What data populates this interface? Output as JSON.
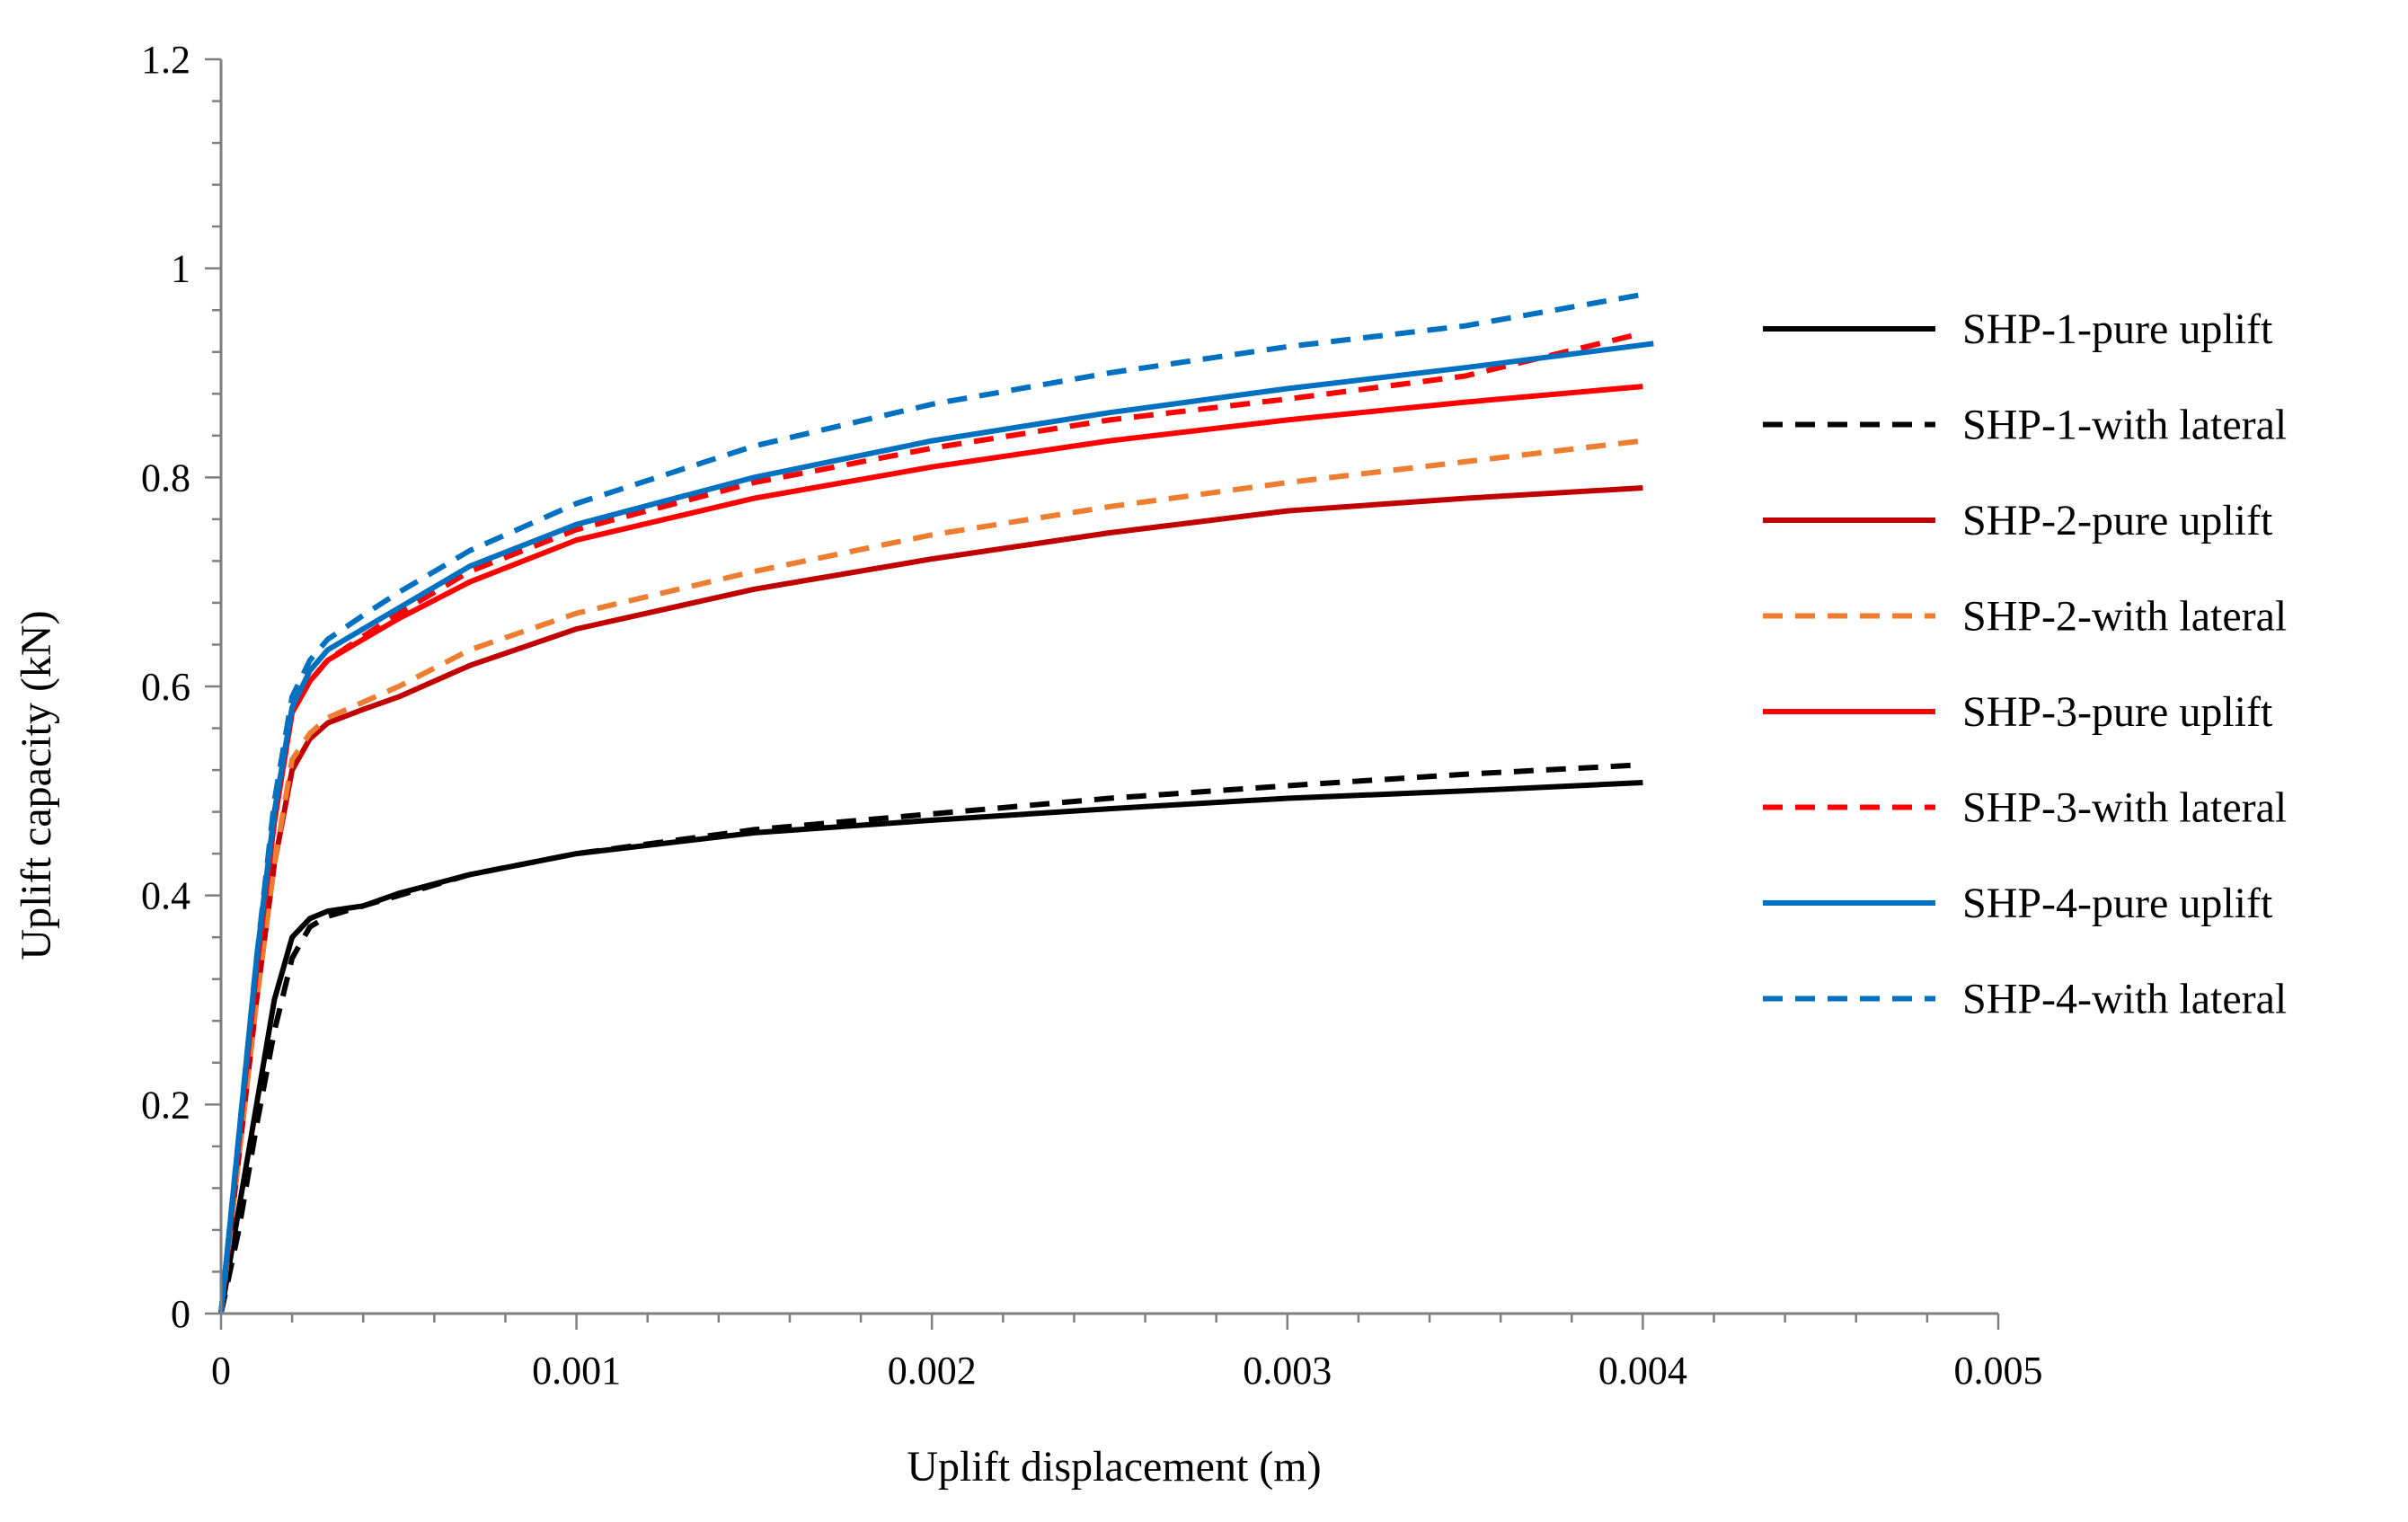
{
  "chart_data": {
    "type": "line",
    "title": "",
    "xlabel": "Uplift displacement (m)",
    "ylabel": "Uplift capacity (kN)",
    "xlim": [
      0,
      0.005
    ],
    "ylim": [
      0,
      1.2
    ],
    "xticks": [
      0,
      0.001,
      0.002,
      0.003,
      0.004,
      0.005
    ],
    "xtick_labels": [
      "0",
      "0.001",
      "0.002",
      "0.003",
      "0.004",
      "0.005"
    ],
    "yticks": [
      0,
      0.2,
      0.4,
      0.6,
      0.8,
      1.0,
      1.2
    ],
    "ytick_labels": [
      "0",
      "0.2",
      "0.4",
      "0.6",
      "0.8",
      "1",
      "1.2"
    ],
    "grid": false,
    "legend_position": "right",
    "series": [
      {
        "name": "SHP-1-pure uplift",
        "color": "#000000",
        "dash": "solid",
        "x": [
          0,
          5e-05,
          0.0001,
          0.00015,
          0.0002,
          0.00025,
          0.0003,
          0.0004,
          0.0005,
          0.0007,
          0.001,
          0.0015,
          0.002,
          0.0025,
          0.003,
          0.0035,
          0.004
        ],
        "y": [
          0,
          0.1,
          0.2,
          0.3,
          0.36,
          0.378,
          0.385,
          0.39,
          0.402,
          0.42,
          0.44,
          0.46,
          0.472,
          0.483,
          0.493,
          0.5,
          0.508
        ]
      },
      {
        "name": "SHP-1-with lateral",
        "color": "#000000",
        "dash": "dashed",
        "x": [
          0,
          5e-05,
          0.0001,
          0.00015,
          0.0002,
          0.00025,
          0.0003,
          0.0004,
          0.0005,
          0.0007,
          0.001,
          0.0015,
          0.002,
          0.0025,
          0.003,
          0.0035,
          0.004
        ],
        "y": [
          0,
          0.08,
          0.18,
          0.27,
          0.34,
          0.37,
          0.38,
          0.39,
          0.4,
          0.42,
          0.44,
          0.463,
          0.478,
          0.493,
          0.505,
          0.516,
          0.525
        ]
      },
      {
        "name": "SHP-2-pure uplift",
        "color": "#c00000",
        "dash": "solid",
        "x": [
          0,
          0.0001,
          0.00015,
          0.0002,
          0.00025,
          0.0003,
          0.0004,
          0.0005,
          0.0007,
          0.001,
          0.0015,
          0.002,
          0.0025,
          0.003,
          0.0035,
          0.004
        ],
        "y": [
          0,
          0.3,
          0.43,
          0.52,
          0.55,
          0.565,
          0.578,
          0.59,
          0.62,
          0.655,
          0.693,
          0.722,
          0.747,
          0.768,
          0.78,
          0.79
        ]
      },
      {
        "name": "SHP-2-with lateral",
        "color": "#ed7d31",
        "dash": "dashed",
        "x": [
          0,
          0.0001,
          0.00015,
          0.0002,
          0.00025,
          0.0003,
          0.0004,
          0.0005,
          0.0007,
          0.001,
          0.0015,
          0.002,
          0.0025,
          0.003,
          0.0035,
          0.004
        ],
        "y": [
          0,
          0.3,
          0.43,
          0.53,
          0.555,
          0.57,
          0.585,
          0.6,
          0.635,
          0.67,
          0.71,
          0.745,
          0.772,
          0.795,
          0.815,
          0.835
        ]
      },
      {
        "name": "SHP-3-pure uplift",
        "color": "#ff0000",
        "dash": "solid",
        "x": [
          0,
          0.0001,
          0.00015,
          0.0002,
          0.00025,
          0.0003,
          0.0004,
          0.0005,
          0.0007,
          0.001,
          0.0015,
          0.002,
          0.0025,
          0.003,
          0.0035,
          0.004
        ],
        "y": [
          0,
          0.33,
          0.47,
          0.575,
          0.605,
          0.625,
          0.645,
          0.665,
          0.7,
          0.74,
          0.78,
          0.81,
          0.835,
          0.855,
          0.872,
          0.887
        ]
      },
      {
        "name": "SHP-3-with lateral",
        "color": "#ff0000",
        "dash": "dashed",
        "x": [
          0,
          0.0001,
          0.00015,
          0.0002,
          0.00025,
          0.0003,
          0.0004,
          0.0005,
          0.0007,
          0.001,
          0.0015,
          0.002,
          0.0025,
          0.003,
          0.0035,
          0.004
        ],
        "y": [
          0,
          0.33,
          0.47,
          0.575,
          0.605,
          0.625,
          0.648,
          0.67,
          0.71,
          0.75,
          0.795,
          0.828,
          0.855,
          0.875,
          0.897,
          0.938
        ]
      },
      {
        "name": "SHP-4-pure uplift",
        "color": "#0070c0",
        "dash": "solid",
        "x": [
          0,
          0.0001,
          0.00015,
          0.0002,
          0.00025,
          0.0003,
          0.0004,
          0.0005,
          0.0007,
          0.001,
          0.0015,
          0.002,
          0.0025,
          0.003,
          0.0035,
          0.00403
        ],
        "y": [
          0,
          0.34,
          0.48,
          0.58,
          0.615,
          0.635,
          0.655,
          0.675,
          0.715,
          0.755,
          0.8,
          0.835,
          0.862,
          0.885,
          0.905,
          0.928
        ]
      },
      {
        "name": "SHP-4-with lateral",
        "color": "#0070c0",
        "dash": "dashed",
        "x": [
          0,
          0.0001,
          0.00015,
          0.0002,
          0.00025,
          0.0003,
          0.0004,
          0.0005,
          0.0007,
          0.001,
          0.0015,
          0.002,
          0.0025,
          0.003,
          0.0035,
          0.004
        ],
        "y": [
          0,
          0.34,
          0.49,
          0.59,
          0.625,
          0.645,
          0.668,
          0.69,
          0.73,
          0.775,
          0.83,
          0.87,
          0.9,
          0.925,
          0.945,
          0.975
        ]
      }
    ]
  }
}
